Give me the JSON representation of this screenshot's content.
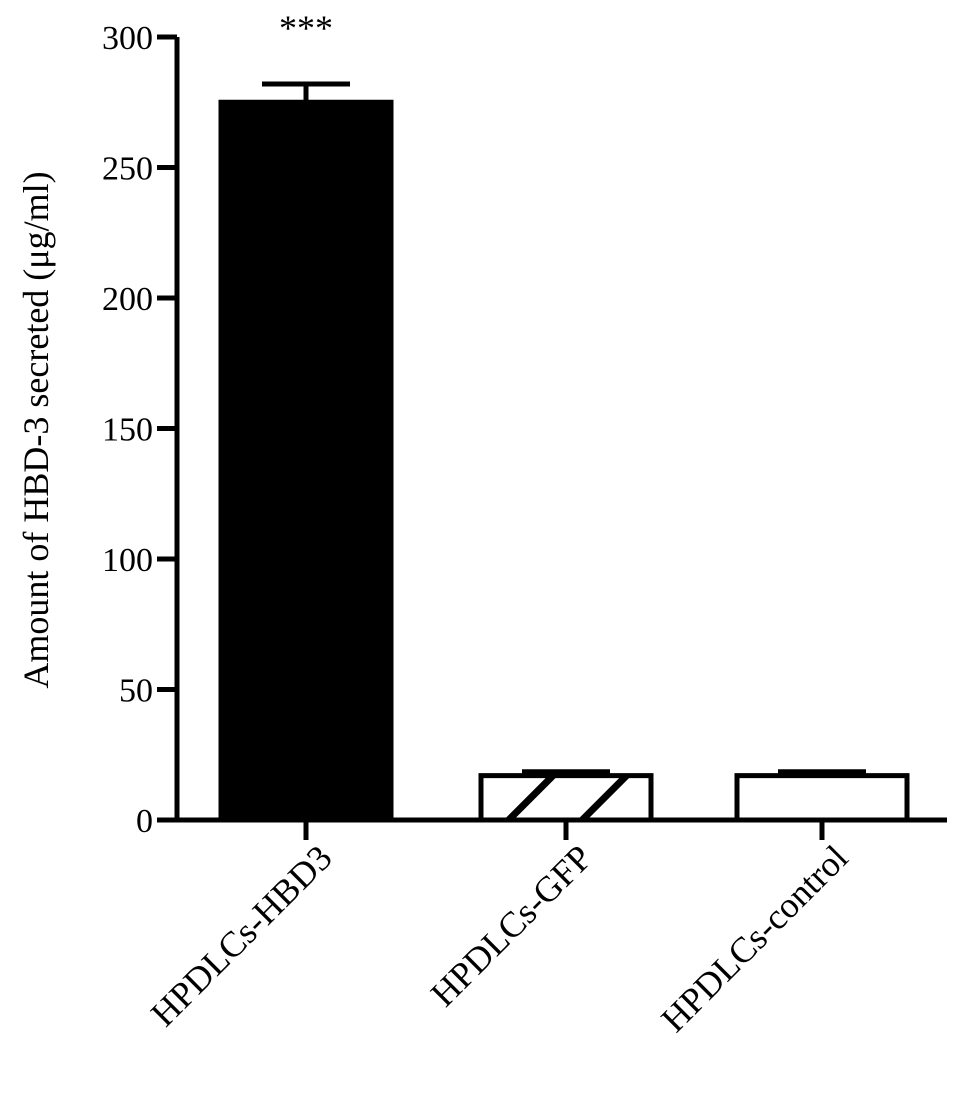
{
  "chart_data": {
    "type": "bar",
    "title": "",
    "xlabel": "",
    "ylabel": "Amount of HBD-3 secreted (μg/ml)",
    "categories": [
      "HPDLCs-HBD3",
      "HPDLCs-GFP",
      "HPDLCs-control"
    ],
    "values": [
      275,
      17,
      17
    ],
    "errors": [
      7,
      1.5,
      1.5
    ],
    "fills": [
      "solid",
      "hatched",
      "empty"
    ],
    "significance": [
      "***",
      "",
      ""
    ],
    "ylim": [
      0,
      300
    ],
    "yticks": [
      0,
      50,
      100,
      150,
      200,
      250,
      300
    ],
    "grid": false,
    "legend": "none",
    "colors": {
      "bar": "#000000",
      "background": "#ffffff"
    }
  }
}
